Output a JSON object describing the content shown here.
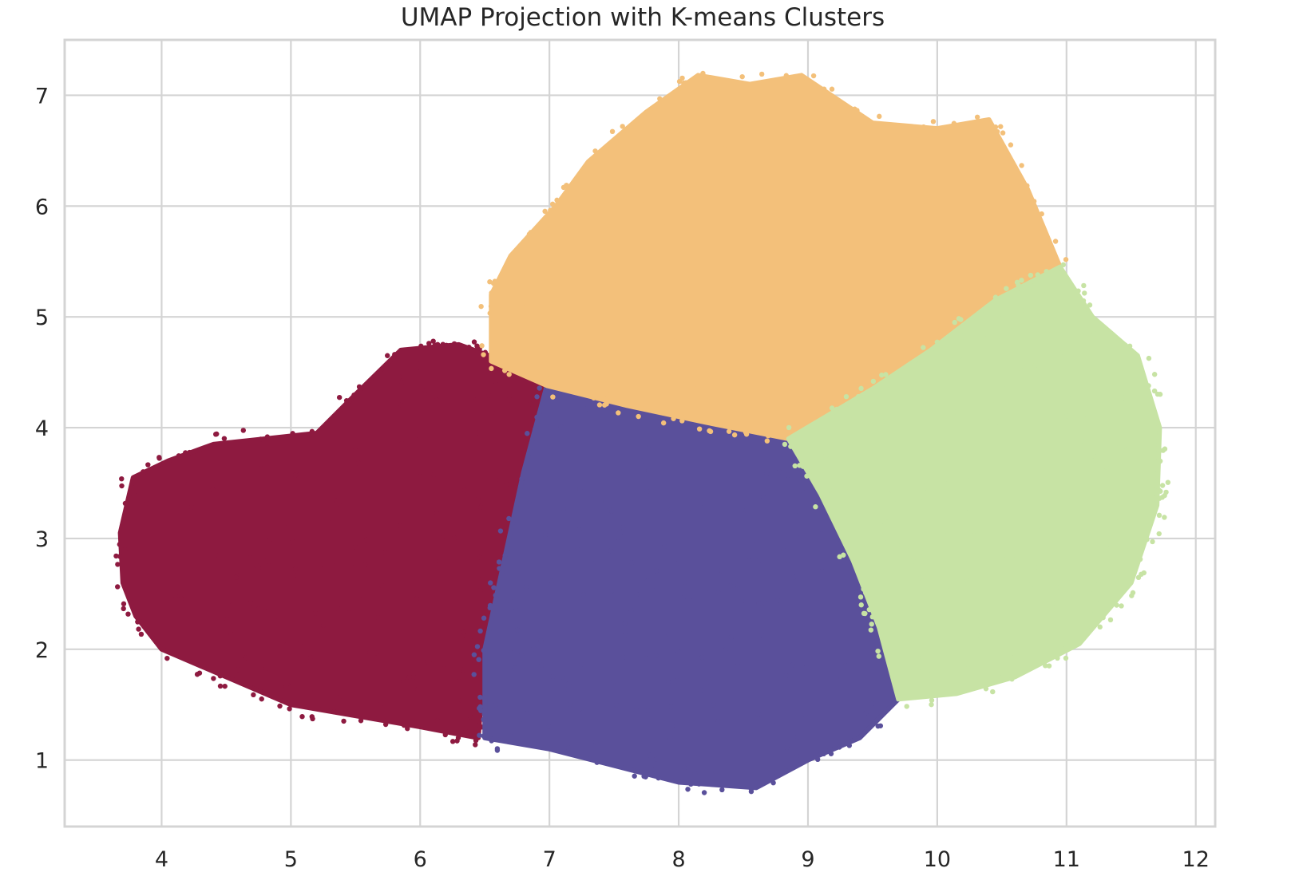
{
  "chart_data": {
    "type": "scatter",
    "title": "UMAP Projection with K-means Clusters",
    "xlabel": "",
    "ylabel": "",
    "xlim": [
      3.25,
      12.15
    ],
    "ylim": [
      0.4,
      7.5
    ],
    "xticks": [
      4,
      5,
      6,
      7,
      8,
      9,
      10,
      11,
      12
    ],
    "yticks": [
      1,
      2,
      3,
      4,
      5,
      6,
      7
    ],
    "grid": true,
    "legend": "none",
    "series": [
      {
        "color": "#8e1a40",
        "outline": [
          [
            3.68,
            3.05
          ],
          [
            3.78,
            3.55
          ],
          [
            4.05,
            3.7
          ],
          [
            4.4,
            3.85
          ],
          [
            4.8,
            3.9
          ],
          [
            5.2,
            3.95
          ],
          [
            5.5,
            4.3
          ],
          [
            5.85,
            4.7
          ],
          [
            6.3,
            4.75
          ],
          [
            6.65,
            4.6
          ],
          [
            6.98,
            4.35
          ],
          [
            6.8,
            3.6
          ],
          [
            6.65,
            2.8
          ],
          [
            6.5,
            2.0
          ],
          [
            6.45,
            1.2
          ],
          [
            6.0,
            1.3
          ],
          [
            5.5,
            1.4
          ],
          [
            5.0,
            1.5
          ],
          [
            4.5,
            1.75
          ],
          [
            4.0,
            2.0
          ],
          [
            3.8,
            2.3
          ],
          [
            3.7,
            2.6
          ]
        ]
      },
      {
        "color": "#5a509b",
        "outline": [
          [
            6.98,
            4.38
          ],
          [
            7.6,
            4.2
          ],
          [
            8.2,
            4.05
          ],
          [
            8.85,
            3.9
          ],
          [
            9.1,
            3.4
          ],
          [
            9.35,
            2.8
          ],
          [
            9.55,
            2.2
          ],
          [
            9.7,
            1.55
          ],
          [
            9.4,
            1.2
          ],
          [
            9.0,
            1.0
          ],
          [
            8.6,
            0.75
          ],
          [
            8.0,
            0.8
          ],
          [
            7.5,
            0.95
          ],
          [
            7.0,
            1.1
          ],
          [
            6.5,
            1.2
          ],
          [
            6.5,
            2.0
          ],
          [
            6.65,
            2.8
          ],
          [
            6.8,
            3.6
          ]
        ]
      },
      {
        "color": "#f3c07a",
        "outline": [
          [
            6.55,
            4.6
          ],
          [
            6.55,
            5.2
          ],
          [
            6.7,
            5.55
          ],
          [
            7.05,
            6.0
          ],
          [
            7.3,
            6.4
          ],
          [
            7.75,
            6.85
          ],
          [
            8.15,
            7.18
          ],
          [
            8.55,
            7.1
          ],
          [
            8.95,
            7.18
          ],
          [
            9.5,
            6.75
          ],
          [
            10.0,
            6.7
          ],
          [
            10.4,
            6.78
          ],
          [
            10.7,
            6.15
          ],
          [
            10.95,
            5.45
          ],
          [
            10.45,
            5.15
          ],
          [
            9.95,
            4.7
          ],
          [
            9.5,
            4.35
          ],
          [
            8.85,
            3.9
          ],
          [
            8.2,
            4.05
          ],
          [
            7.6,
            4.2
          ],
          [
            6.98,
            4.38
          ]
        ]
      },
      {
        "color": "#c7e3a4",
        "outline": [
          [
            8.85,
            3.9
          ],
          [
            9.5,
            4.35
          ],
          [
            9.95,
            4.7
          ],
          [
            10.45,
            5.15
          ],
          [
            10.95,
            5.45
          ],
          [
            11.2,
            5.0
          ],
          [
            11.55,
            4.65
          ],
          [
            11.72,
            4.0
          ],
          [
            11.7,
            3.3
          ],
          [
            11.5,
            2.6
          ],
          [
            11.1,
            2.05
          ],
          [
            10.6,
            1.75
          ],
          [
            10.15,
            1.6
          ],
          [
            9.7,
            1.55
          ],
          [
            9.55,
            2.2
          ],
          [
            9.35,
            2.8
          ],
          [
            9.1,
            3.4
          ]
        ]
      }
    ]
  }
}
